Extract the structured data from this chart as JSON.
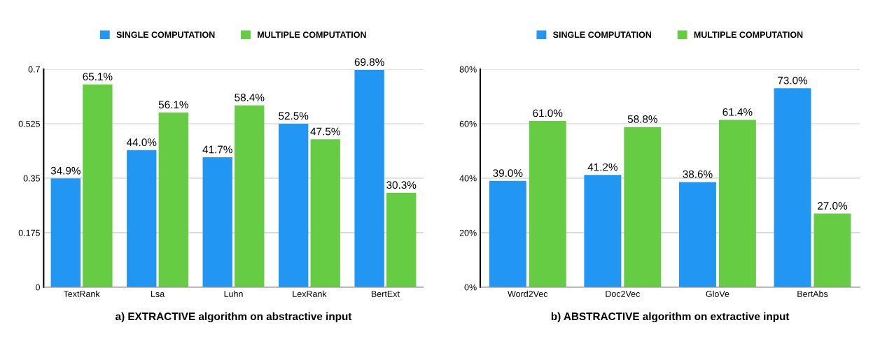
{
  "chart_data": [
    {
      "type": "bar",
      "xlabel": "a) EXTRACTIVE algorithm on abstractive input",
      "categories": [
        "TextRank",
        "Lsa",
        "Luhn",
        "LexRank",
        "BertExt"
      ],
      "series": [
        {
          "name": "SINGLE COMPUTATION",
          "color": "#2196f3",
          "values": [
            0.349,
            0.44,
            0.417,
            0.525,
            0.698
          ],
          "value_labels": [
            "34.9%",
            "44.0%",
            "41.7%",
            "52.5%",
            "69.8%"
          ]
        },
        {
          "name": "MULTIPLE COMPUTATION",
          "color": "#66cc44",
          "values": [
            0.651,
            0.561,
            0.584,
            0.475,
            0.303
          ],
          "value_labels": [
            "65.1%",
            "56.1%",
            "58.4%",
            "47.5%",
            "30.3%"
          ]
        }
      ],
      "ylim": [
        0,
        0.7
      ],
      "yticks": [
        0,
        0.175,
        0.35,
        0.525,
        0.7
      ],
      "grid": "y",
      "legend": "top"
    },
    {
      "type": "bar",
      "xlabel": "b) ABSTRACTIVE algorithm on extractive input",
      "categories": [
        "Word2Vec",
        "Doc2Vec",
        "GloVe",
        "BertAbs"
      ],
      "series": [
        {
          "name": "SINGLE COMPUTATION",
          "color": "#2196f3",
          "values": [
            39.0,
            41.2,
            38.6,
            73.0
          ],
          "value_labels": [
            "39.0%",
            "41.2%",
            "38.6%",
            "73.0%"
          ]
        },
        {
          "name": "MULTIPLE COMPUTATION",
          "color": "#66cc44",
          "values": [
            61.0,
            58.8,
            61.4,
            27.0
          ],
          "value_labels": [
            "61.0%",
            "58.8%",
            "61.4%",
            "27.0%"
          ]
        }
      ],
      "ylim": [
        0,
        80
      ],
      "yticks": [
        {
          "value": 0,
          "label": "0%"
        },
        {
          "value": 20,
          "label": "20%"
        },
        {
          "value": 40,
          "label": "40%"
        },
        {
          "value": 60,
          "label": "60%"
        },
        {
          "value": 80,
          "label": "80%"
        }
      ],
      "grid": "y",
      "legend": "top"
    }
  ]
}
